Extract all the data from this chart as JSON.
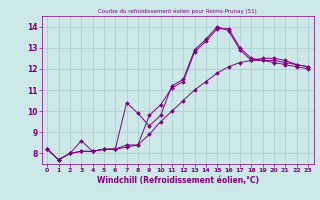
{
  "title": "Courbe du refroidissement éolien pour Reims-Prunay (51)",
  "xlabel": "Windchill (Refroidissement éolien,°C)",
  "background_color": "#cce8e8",
  "line_color": "#800080",
  "grid_color": "#aacccc",
  "xlim": [
    -0.5,
    23.5
  ],
  "ylim": [
    7.5,
    14.5
  ],
  "xticks": [
    0,
    1,
    2,
    3,
    4,
    5,
    6,
    7,
    8,
    9,
    10,
    11,
    12,
    13,
    14,
    15,
    16,
    17,
    18,
    19,
    20,
    21,
    22,
    23
  ],
  "yticks": [
    8,
    9,
    10,
    11,
    12,
    13,
    14
  ],
  "series": [
    {
      "x": [
        0,
        1,
        2,
        3,
        4,
        5,
        6,
        7,
        8,
        9,
        10,
        11,
        12,
        13,
        14,
        15,
        16,
        17,
        18,
        19,
        20,
        21,
        22,
        23
      ],
      "y": [
        8.2,
        7.7,
        8.0,
        8.6,
        8.1,
        8.2,
        8.2,
        8.3,
        8.4,
        9.8,
        10.3,
        11.1,
        11.4,
        12.8,
        13.3,
        13.9,
        13.9,
        13.0,
        12.5,
        12.4,
        12.4,
        12.3,
        12.2,
        12.1
      ]
    },
    {
      "x": [
        0,
        1,
        2,
        3,
        4,
        5,
        6,
        7,
        8,
        9,
        10,
        11,
        12,
        13,
        14,
        15,
        16,
        17,
        18,
        19,
        20,
        21,
        22,
        23
      ],
      "y": [
        8.2,
        7.7,
        8.0,
        8.1,
        8.1,
        8.2,
        8.2,
        10.4,
        9.9,
        9.3,
        9.8,
        11.2,
        11.5,
        12.9,
        13.4,
        14.0,
        13.8,
        12.9,
        12.4,
        12.4,
        12.3,
        12.2,
        12.1,
        12.0
      ]
    },
    {
      "x": [
        0,
        1,
        2,
        3,
        4,
        5,
        6,
        7,
        8,
        9,
        10,
        11,
        12,
        13,
        14,
        15,
        16,
        17,
        18,
        19,
        20,
        21,
        22,
        23
      ],
      "y": [
        8.2,
        7.7,
        8.0,
        8.1,
        8.1,
        8.2,
        8.2,
        8.4,
        8.4,
        8.9,
        9.5,
        10.0,
        10.5,
        11.0,
        11.4,
        11.8,
        12.1,
        12.3,
        12.4,
        12.5,
        12.5,
        12.4,
        12.2,
        12.1
      ]
    }
  ]
}
